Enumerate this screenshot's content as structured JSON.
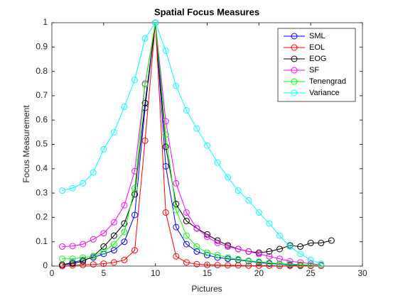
{
  "chart_data": {
    "type": "line",
    "title": "Spatial Focus Measures",
    "xlabel": "Pictures",
    "ylabel": "Focus Measurement",
    "x": [
      1,
      2,
      3,
      4,
      5,
      6,
      7,
      8,
      9,
      10,
      11,
      12,
      13,
      14,
      15,
      16,
      17,
      18,
      19,
      20,
      21,
      22,
      23,
      24,
      25,
      26,
      27
    ],
    "series": [
      {
        "name": "SML",
        "color": "#0000ff",
        "values": [
          0.005,
          0.015,
          0.025,
          0.035,
          0.05,
          0.065,
          0.1,
          0.21,
          0.65,
          1,
          0.41,
          0.16,
          0.09,
          0.06,
          0.045,
          0.035,
          0.03,
          0.025,
          0.02,
          0.015,
          0.01,
          0.008,
          0.005,
          0.004,
          0.003,
          0.002,
          null
        ]
      },
      {
        "name": "EOL",
        "color": "#ff0000",
        "values": [
          0,
          0.003,
          0.005,
          0.007,
          0.01,
          0.015,
          0.025,
          0.065,
          0.515,
          1,
          0.22,
          0.04,
          0.015,
          0.008,
          0.005,
          0.004,
          0.003,
          0.003,
          0.002,
          0.002,
          0.002,
          0.001,
          0.001,
          0.001,
          0.001,
          0.001,
          null
        ]
      },
      {
        "name": "EOG",
        "color": "#000000",
        "values": [
          0.005,
          0.01,
          0.02,
          0.04,
          0.08,
          0.125,
          0.175,
          0.295,
          0.67,
          1,
          0.49,
          0.255,
          0.185,
          0.155,
          0.13,
          0.105,
          0.085,
          0.07,
          0.06,
          0.055,
          0.06,
          0.07,
          0.085,
          0.08,
          0.095,
          0.095,
          0.105
        ]
      },
      {
        "name": "SF",
        "color": "#ff00ff",
        "values": [
          0.08,
          0.082,
          0.09,
          0.11,
          0.135,
          0.18,
          0.25,
          0.39,
          0.75,
          1,
          0.595,
          0.34,
          0.22,
          0.155,
          0.12,
          0.095,
          0.08,
          0.07,
          0.06,
          0.05,
          0.04,
          0.03,
          0.02,
          0.015,
          0.01,
          0.005,
          null
        ]
      },
      {
        "name": "Tenengrad",
        "color": "#00ff00",
        "values": [
          0.03,
          0.03,
          0.035,
          0.04,
          0.06,
          0.09,
          0.14,
          0.32,
          0.745,
          1,
          0.54,
          0.23,
          0.125,
          0.08,
          0.055,
          0.045,
          0.035,
          0.028,
          0.022,
          0.018,
          0.014,
          0.01,
          0.008,
          0.006,
          0.004,
          0.003,
          null
        ]
      },
      {
        "name": "Variance",
        "color": "#00ffff",
        "values": [
          0.31,
          0.32,
          0.34,
          0.385,
          0.48,
          0.55,
          0.655,
          0.765,
          0.935,
          1,
          0.885,
          0.74,
          0.64,
          0.565,
          0.495,
          0.425,
          0.365,
          0.31,
          0.27,
          0.22,
          0.175,
          0.125,
          0.08,
          0.05,
          0.025,
          0.01,
          null
        ]
      }
    ],
    "xlim": [
      0,
      30
    ],
    "xticks": [
      0,
      5,
      10,
      15,
      20,
      25,
      30
    ],
    "ylim": [
      0,
      1
    ],
    "yticks": [
      0,
      0.1,
      0.2,
      0.3,
      0.4,
      0.5,
      0.6,
      0.7,
      0.8,
      0.9,
      1
    ],
    "legend": "northeast",
    "grid": false
  }
}
